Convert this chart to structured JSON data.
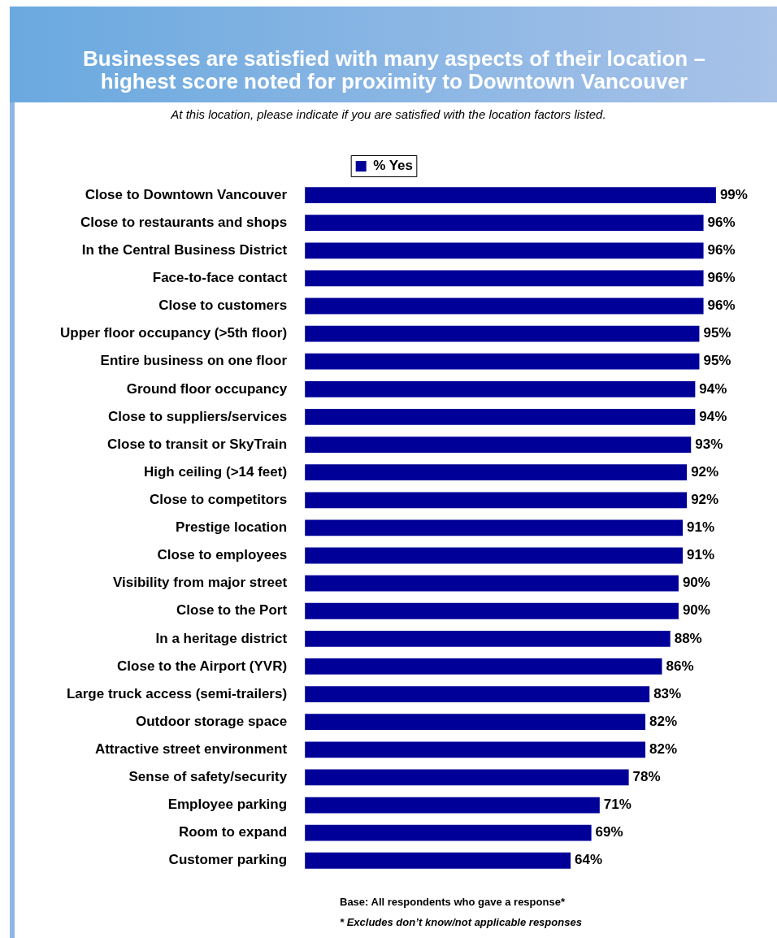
{
  "chart_data": {
    "type": "bar",
    "orientation": "horizontal",
    "title": "Businesses are satisfied with many aspects of their location – highest score noted for proximity to Downtown Vancouver",
    "subtitle": "At this location, please indicate if you are satisfied with the location factors listed.",
    "categories": [
      "Close to Downtown Vancouver",
      "Close to restaurants and shops",
      "In the Central Business District",
      "Face-to-face contact",
      "Close to customers",
      "Upper floor occupancy (>5th floor)",
      "Entire business on one floor",
      "Ground floor occupancy",
      "Close to suppliers/services",
      "Close to transit or SkyTrain",
      "High ceiling (>14 feet)",
      "Close to competitors",
      "Prestige location",
      "Close to employees",
      "Visibility from major street",
      "Close to the Port",
      "In a heritage district",
      "Close to the Airport (YVR)",
      "Large truck access (semi-trailers)",
      "Outdoor storage space",
      "Attractive street environment",
      "Sense of safety/security",
      "Employee parking",
      "Room to expand",
      "Customer parking"
    ],
    "series": [
      {
        "name": "% Yes",
        "color": "#000099",
        "values": [
          99,
          96,
          96,
          96,
          96,
          95,
          95,
          94,
          94,
          93,
          92,
          92,
          91,
          91,
          90,
          90,
          88,
          86,
          83,
          82,
          82,
          78,
          71,
          69,
          64
        ],
        "value_labels": [
          "99%",
          "96%",
          "96%",
          "96%",
          "96%",
          "95%",
          "95%",
          "94%",
          "94%",
          "93%",
          "92%",
          "92%",
          "91%",
          "91%",
          "90%",
          "90%",
          "88%",
          "86%",
          "83%",
          "82%",
          "82%",
          "78%",
          "71%",
          "69%",
          "64%"
        ]
      }
    ],
    "legend": "top",
    "grid": false,
    "annotations": [
      "Base: All respondents who gave a response*",
      "* Excludes don’t know/not applicable responses"
    ]
  }
}
